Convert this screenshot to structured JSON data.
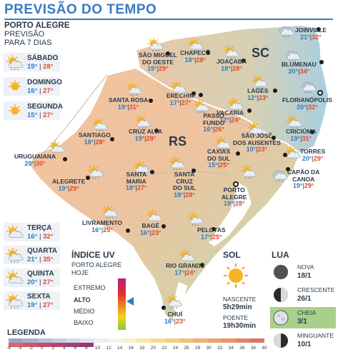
{
  "title": "PREVISÃO DO TEMPO",
  "header": {
    "city": "PORTO ALEGRE",
    "line1": "PREVISÃO",
    "line2": "PARA 7 DIAS"
  },
  "week": [
    {
      "day": "SÁBADO",
      "min": "19°",
      "max": "28°",
      "icon": "sun-rain-icon"
    },
    {
      "day": "DOMINGO",
      "min": "16°",
      "max": "27°",
      "icon": "sun-icon"
    },
    {
      "day": "SEGUNDA",
      "min": "15°",
      "max": "27°",
      "icon": "sun-icon"
    },
    {
      "day": "TERÇA",
      "min": "16°",
      "max": "32°",
      "icon": "sun-cloud-icon"
    },
    {
      "day": "QUARTA",
      "min": "21°",
      "max": "35°",
      "icon": "sun-rain-icon"
    },
    {
      "day": "QUINTA",
      "min": "20°",
      "max": "27°",
      "icon": "sun-cloud-icon"
    },
    {
      "day": "SEXTA",
      "min": "19°",
      "max": "27°",
      "icon": "sun-rain-icon"
    }
  ],
  "map": {
    "state_rs": "RS",
    "state_sc": "SC",
    "cities": [
      {
        "name": "SÃO MIGUEL\nDO OESTE",
        "min": "19°",
        "max": "29°",
        "icon": "sun-rain-icon"
      },
      {
        "name": "CHAPECÓ",
        "min": "18°",
        "max": "28°",
        "icon": "sun-rain-icon"
      },
      {
        "name": "JOAÇABA",
        "min": "18°",
        "max": "28°",
        "icon": "sun-rain-icon"
      },
      {
        "name": "JOINVILLE",
        "min": "21°",
        "max": "32°",
        "icon": "cloud-rain-icon"
      },
      {
        "name": "BLUMENAU",
        "min": "20°",
        "max": "34°",
        "icon": "cloud-rain-icon"
      },
      {
        "name": "SANTA ROSA",
        "min": "19°",
        "max": "31°",
        "icon": "sun-rain-icon"
      },
      {
        "name": "ERECHIM",
        "min": "17°",
        "max": "27°",
        "icon": "sun-rain-icon"
      },
      {
        "name": "LAGES",
        "min": "12°",
        "max": "23°",
        "icon": "sun-rain-icon"
      },
      {
        "name": "FLORIANÓPOLIS",
        "min": "20°",
        "max": "32°",
        "icon": "cloud-rain-icon"
      },
      {
        "name": "PASSO\nFUNDO",
        "min": "16°",
        "max": "26°",
        "icon": "sun-rain-icon"
      },
      {
        "name": "VACARIA",
        "min": "12°",
        "max": "24°",
        "icon": "sun-rain-icon"
      },
      {
        "name": "SANTIAGO",
        "min": "18°",
        "max": "28°",
        "icon": "sun-rain-icon"
      },
      {
        "name": "CRUZ ALTA",
        "min": "19°",
        "max": "28°",
        "icon": "sun-rain-icon"
      },
      {
        "name": "SÃO JOSÉ\nDOS AUSENTES",
        "min": "10°",
        "max": "23°",
        "icon": "sun-rain-icon"
      },
      {
        "name": "CRICIÚMA",
        "min": "19°",
        "max": "31°",
        "icon": "sun-rain-icon"
      },
      {
        "name": "URUGUAIANA",
        "min": "20°",
        "max": "30°",
        "icon": "sun-cloud-icon"
      },
      {
        "name": "CAXIAS\nDO SUL",
        "min": "15°",
        "max": "25°",
        "icon": "sun-rain-icon"
      },
      {
        "name": "TORRES",
        "min": "20°",
        "max": "29°",
        "icon": "sun-cloud-icon"
      },
      {
        "name": "ALEGRETE",
        "min": "19°",
        "max": "29°",
        "icon": "sun-rain-icon"
      },
      {
        "name": "SANTA\nMARIA",
        "min": "18°",
        "max": "27°",
        "icon": "sun-rain-icon"
      },
      {
        "name": "SANTA\nCRUZ\nDO SUL",
        "min": "18°",
        "max": "28°",
        "icon": "sun-rain-icon"
      },
      {
        "name": "CAPÃO DA\nCANOA",
        "min": "19°",
        "max": "29°",
        "icon": "cloud-rain-icon"
      },
      {
        "name": "PORTO\nALEGRE",
        "min": "19°",
        "max": "28°",
        "icon": "sun-rain-icon"
      },
      {
        "name": "LIVRAMENTO",
        "min": "16°",
        "max": "25°",
        "icon": "sun-rain-icon"
      },
      {
        "name": "BAGÉ",
        "min": "16°",
        "max": "23°",
        "icon": "sun-cloud-icon"
      },
      {
        "name": "PELOTAS",
        "min": "17°",
        "max": "25°",
        "icon": "sun-rain-icon"
      },
      {
        "name": "RIO GRANDE",
        "min": "17°",
        "max": "24°",
        "icon": "sun-cloud-icon"
      },
      {
        "name": "CHUÍ",
        "min": "16°",
        "max": "23°",
        "icon": "sun-rain-icon"
      }
    ]
  },
  "uv": {
    "title": "ÍNDICE UV",
    "sub1": "PORTO ALEGRE",
    "sub2": "HOJE",
    "levels": [
      "EXTREMO",
      "ALTO",
      "MÉDIO",
      "BAIXO"
    ],
    "current_level": "ALTO"
  },
  "sun": {
    "title": "SOL",
    "rise_label": "NASCENTE",
    "rise": "5h29min",
    "set_label": "POENTE",
    "set": "19h30min"
  },
  "moon": {
    "title": "LUA",
    "phases": [
      {
        "name": "NOVA",
        "date": "18/1",
        "icon": "new-moon-icon"
      },
      {
        "name": "CRESCENTE",
        "date": "26/1",
        "icon": "first-quarter-moon-icon"
      },
      {
        "name": "CHEIA",
        "date": "3/1",
        "icon": "full-moon-icon",
        "highlight": true
      },
      {
        "name": "MINGUANTE",
        "date": "10/1",
        "icon": "last-quarter-moon-icon"
      }
    ]
  },
  "legend": {
    "title": "LEGENDA",
    "ticks": [
      "-6",
      "-4",
      "-2",
      "0",
      "2",
      "4",
      "6",
      "8",
      "10",
      "12",
      "14",
      "16",
      "18",
      "20",
      "22",
      "24",
      "26",
      "28",
      "30",
      "32",
      "34",
      "36",
      "38",
      "40"
    ],
    "colors": [
      "#9aa6c8",
      "#a7b3d2",
      "#b5c0da",
      "#c3cde2",
      "#d0d9ea",
      "#dde5f1",
      "#e9eef6",
      "#f3f6e8",
      "#f6f1c8",
      "#f7e7a8",
      "#f6dc91",
      "#f4cf83",
      "#f2c07b",
      "#efb174",
      "#eca26e",
      "#e8936a",
      "#e38467",
      "#dc7566",
      "#d46766",
      "#ca5a68",
      "#bf4f6b",
      "#b3466e",
      "#a73e71",
      "#9b3874"
    ]
  },
  "colors": {
    "accent": "#3a7bbf",
    "min_temp": "#2f7bc0",
    "max_temp": "#d94a2b",
    "moon_highlight": "#a7d08c"
  }
}
